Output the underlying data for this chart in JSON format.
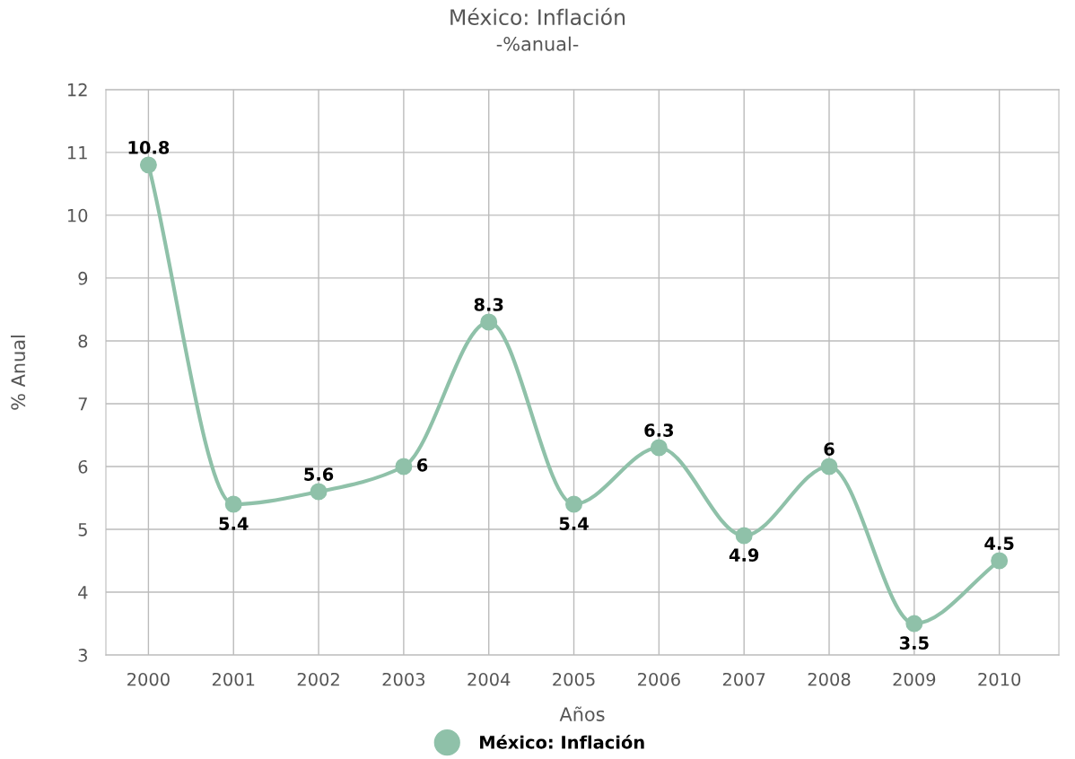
{
  "chart_data": {
    "type": "line",
    "title": "México: Inflación",
    "subtitle": "-%anual-",
    "xlabel": "Años",
    "ylabel": "% Anual",
    "categories": [
      "2000",
      "2001",
      "2002",
      "2003",
      "2004",
      "2005",
      "2006",
      "2007",
      "2008",
      "2009",
      "2010"
    ],
    "series": [
      {
        "name": "México: Inflación",
        "color": "#8fc1a9",
        "values": [
          10.8,
          5.4,
          5.6,
          6,
          8.3,
          5.4,
          6.3,
          4.9,
          6,
          3.5,
          4.5
        ]
      }
    ],
    "ylim": [
      3,
      12
    ],
    "yticks": [
      3,
      4,
      5,
      6,
      7,
      8,
      9,
      10,
      11,
      12
    ],
    "grid": true,
    "legend": "bottom",
    "marker": "circle",
    "line_style": "solid",
    "data_labels": true
  }
}
